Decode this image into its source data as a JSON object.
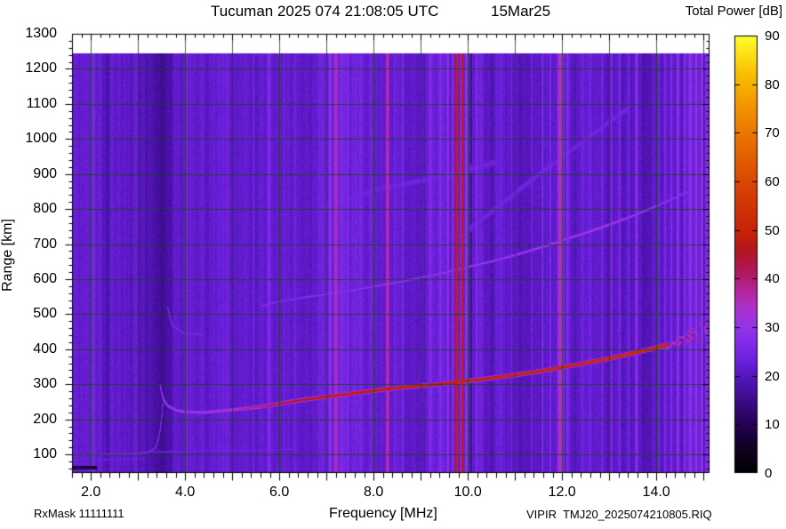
{
  "header": {
    "title": "Tucuman 2025 074 21:08:05 UTC",
    "date_label": "15Mar25"
  },
  "footer": {
    "left": "RxMask 11111111",
    "right": "VIPIR  TMJ20_2025074210805.RIQ"
  },
  "chart_data": {
    "type": "heatmap",
    "title": "Tucuman 2025 074 21:08:05 UTC",
    "date_label": "15Mar25",
    "xlabel": "Frequency [MHz]",
    "ylabel": "Range [km]",
    "colorbar_title": "Total Power [dB]",
    "x_range": [
      1.6,
      15.13
    ],
    "y_range": [
      47,
      1300
    ],
    "data_top_km": 1245,
    "colorbar_range": [
      0,
      90
    ],
    "x_tick_labels": [
      "2.0",
      "4.0",
      "6.0",
      "8.0",
      "10.0",
      "12.0",
      "14.0"
    ],
    "x_tick_values": [
      2,
      4,
      6,
      8,
      10,
      12,
      14
    ],
    "y_tick_labels": [
      "100",
      "200",
      "300",
      "400",
      "500",
      "600",
      "700",
      "800",
      "900",
      "1000",
      "1100",
      "1200",
      "1300"
    ],
    "y_tick_values": [
      100,
      200,
      300,
      400,
      500,
      600,
      700,
      800,
      900,
      1000,
      1100,
      1200,
      1300
    ],
    "colorbar_tick_labels": [
      "0",
      "10",
      "20",
      "30",
      "40",
      "50",
      "60",
      "70",
      "80",
      "90"
    ],
    "colorbar_tick_values": [
      0,
      10,
      20,
      30,
      40,
      50,
      60,
      70,
      80,
      90
    ],
    "grid_color": "#1446144",
    "background_db": 22,
    "colormap_stops": [
      [
        0,
        [
          0,
          0,
          0
        ]
      ],
      [
        6,
        [
          20,
          0,
          40
        ]
      ],
      [
        12,
        [
          45,
          5,
          105
        ]
      ],
      [
        18,
        [
          75,
          18,
          170
        ]
      ],
      [
        22,
        [
          100,
          28,
          210
        ]
      ],
      [
        26,
        [
          125,
          42,
          232
        ]
      ],
      [
        30,
        [
          148,
          52,
          232
        ]
      ],
      [
        34,
        [
          172,
          50,
          205
        ]
      ],
      [
        38,
        [
          180,
          36,
          150
        ]
      ],
      [
        42,
        [
          175,
          24,
          85
        ]
      ],
      [
        46,
        [
          180,
          22,
          30
        ]
      ],
      [
        50,
        [
          200,
          35,
          8
        ]
      ],
      [
        58,
        [
          214,
          64,
          4
        ]
      ],
      [
        66,
        [
          228,
          100,
          0
        ]
      ],
      [
        74,
        [
          240,
          140,
          0
        ]
      ],
      [
        82,
        [
          250,
          190,
          0
        ]
      ],
      [
        90,
        [
          255,
          255,
          45
        ]
      ]
    ],
    "stripes": [
      [
        2.05,
        0.1,
        2
      ],
      [
        2.32,
        0.22,
        -2.5
      ],
      [
        2.62,
        0.06,
        1.5
      ],
      [
        2.95,
        0.12,
        3
      ],
      [
        3.18,
        0.1,
        -2
      ],
      [
        3.42,
        0.3,
        -3.5
      ],
      [
        3.62,
        0.25,
        -3
      ],
      [
        4.05,
        0.06,
        2
      ],
      [
        4.5,
        0.22,
        -2
      ],
      [
        5.05,
        0.22,
        -1.5
      ],
      [
        5.45,
        0.05,
        2.5
      ],
      [
        5.62,
        0.05,
        2
      ],
      [
        5.78,
        0.09,
        4
      ],
      [
        6.1,
        0.05,
        2
      ],
      [
        6.55,
        0.45,
        -2
      ],
      [
        7.08,
        0.05,
        4
      ],
      [
        7.2,
        0.07,
        12
      ],
      [
        7.33,
        0.05,
        4
      ],
      [
        7.46,
        0.05,
        3
      ],
      [
        7.72,
        0.05,
        2.5
      ],
      [
        7.95,
        0.05,
        3
      ],
      [
        8.3,
        0.09,
        16
      ],
      [
        8.45,
        0.05,
        4
      ],
      [
        8.62,
        0.05,
        3.5
      ],
      [
        9.0,
        0.3,
        -2
      ],
      [
        9.2,
        0.05,
        3
      ],
      [
        9.42,
        0.05,
        4
      ],
      [
        9.58,
        0.06,
        6
      ],
      [
        9.68,
        0.05,
        5
      ],
      [
        9.76,
        0.055,
        26
      ],
      [
        9.88,
        0.06,
        24
      ],
      [
        9.97,
        0.05,
        8
      ],
      [
        10.07,
        0.06,
        -6
      ],
      [
        10.18,
        0.04,
        5
      ],
      [
        10.45,
        0.3,
        -2
      ],
      [
        10.7,
        0.05,
        3
      ],
      [
        10.92,
        0.05,
        4
      ],
      [
        11.15,
        0.2,
        -1.5
      ],
      [
        11.35,
        0.05,
        3
      ],
      [
        11.58,
        0.05,
        4
      ],
      [
        11.75,
        0.04,
        5
      ],
      [
        11.97,
        0.14,
        13
      ],
      [
        12.12,
        0.05,
        6
      ],
      [
        12.3,
        0.25,
        -2
      ],
      [
        12.6,
        0.05,
        3
      ],
      [
        12.85,
        0.05,
        4
      ],
      [
        13.05,
        0.06,
        5
      ],
      [
        13.22,
        0.05,
        4
      ],
      [
        13.42,
        0.05,
        4
      ],
      [
        13.58,
        0.08,
        6
      ],
      [
        13.8,
        0.22,
        -2
      ],
      [
        14.05,
        0.04,
        4
      ],
      [
        14.18,
        0.05,
        5
      ],
      [
        14.32,
        0.06,
        6
      ],
      [
        14.46,
        0.06,
        7
      ],
      [
        14.6,
        0.05,
        5
      ],
      [
        14.72,
        0.06,
        6
      ],
      [
        14.85,
        0.05,
        7
      ],
      [
        14.97,
        0.06,
        6
      ],
      [
        15.08,
        0.05,
        5
      ]
    ],
    "traces": {
      "e_layer": {
        "points": [
          [
            1.6,
            100
          ],
          [
            2.2,
            101
          ],
          [
            2.7,
            102
          ],
          [
            3.05,
            104
          ],
          [
            3.25,
            109
          ],
          [
            3.37,
            122
          ],
          [
            3.45,
            160
          ],
          [
            3.5,
            215
          ],
          [
            3.53,
            268
          ]
        ],
        "db": 27,
        "sigma": 1.6
      },
      "e_echo": {
        "points": [
          [
            1.6,
            86
          ],
          [
            2.4,
            87
          ],
          [
            3.1,
            88
          ]
        ],
        "db": 24.5,
        "sigma": 1.4
      },
      "es_tail": {
        "points": [
          [
            3.3,
            108
          ],
          [
            4.3,
            111
          ],
          [
            5.3,
            113
          ],
          [
            6.3,
            115
          ]
        ],
        "db": 24.3,
        "sigma": 1.6
      },
      "f_1hop": {
        "points": [
          [
            3.46,
            298
          ],
          [
            3.52,
            262
          ],
          [
            3.62,
            240
          ],
          [
            3.78,
            228
          ],
          [
            4.0,
            222
          ],
          [
            4.4,
            221
          ],
          [
            4.8,
            226
          ],
          [
            5.2,
            231
          ],
          [
            5.6,
            237
          ],
          [
            6.0,
            246
          ],
          [
            6.5,
            257
          ],
          [
            7.0,
            266
          ],
          [
            7.5,
            274
          ],
          [
            8.0,
            283
          ],
          [
            8.5,
            291
          ],
          [
            9.0,
            297
          ],
          [
            9.5,
            303
          ],
          [
            10.0,
            311
          ],
          [
            10.5,
            319
          ],
          [
            11.0,
            328
          ],
          [
            11.5,
            338
          ],
          [
            12.0,
            350
          ],
          [
            12.5,
            362
          ],
          [
            13.0,
            375
          ],
          [
            13.5,
            390
          ],
          [
            14.0,
            406
          ],
          [
            14.25,
            416
          ]
        ],
        "db_points": [
          [
            3.46,
            30
          ],
          [
            4.0,
            32
          ],
          [
            4.6,
            34
          ],
          [
            5.2,
            38
          ],
          [
            5.8,
            43
          ],
          [
            6.4,
            47
          ],
          [
            7.0,
            50
          ],
          [
            8.0,
            51
          ],
          [
            10.0,
            52
          ],
          [
            12.0,
            53
          ],
          [
            13.5,
            55
          ],
          [
            14.25,
            54
          ]
        ],
        "sigma": 2.2
      },
      "f_2hop_cusp": {
        "points": [
          [
            3.62,
            520
          ],
          [
            3.72,
            468
          ],
          [
            3.95,
            448
          ],
          [
            4.35,
            443
          ]
        ],
        "db": 25.5,
        "sigma": 2.2
      },
      "f_2hop": {
        "points": [
          [
            5.6,
            524
          ],
          [
            6.0,
            538
          ],
          [
            6.5,
            549
          ],
          [
            7.0,
            558
          ],
          [
            7.5,
            569
          ],
          [
            8.0,
            580
          ],
          [
            8.5,
            592
          ],
          [
            9.0,
            606
          ],
          [
            9.5,
            620
          ],
          [
            10.0,
            636
          ],
          [
            10.5,
            652
          ],
          [
            11.0,
            670
          ],
          [
            11.5,
            690
          ],
          [
            12.0,
            712
          ],
          [
            12.5,
            734
          ],
          [
            13.0,
            757
          ],
          [
            13.5,
            782
          ],
          [
            14.0,
            810
          ],
          [
            14.3,
            828
          ],
          [
            14.65,
            850
          ]
        ],
        "db_points": [
          [
            5.6,
            27
          ],
          [
            7.0,
            28
          ],
          [
            9.0,
            29
          ],
          [
            11.0,
            31
          ],
          [
            12.0,
            33
          ],
          [
            12.9,
            34
          ],
          [
            13.5,
            31
          ],
          [
            14.1,
            29
          ],
          [
            14.65,
            28
          ]
        ],
        "sigma": 1.9
      },
      "spread_band_a": {
        "points": [
          [
            6.8,
            800
          ],
          [
            8.0,
            855
          ],
          [
            9.3,
            890
          ],
          [
            10.6,
            935
          ]
        ],
        "db": 24.2,
        "sigma": 7
      },
      "spread_band_b": {
        "points": [
          [
            9.8,
            720
          ],
          [
            11.5,
            900
          ],
          [
            13.4,
            1090
          ]
        ],
        "db": 24.2,
        "sigma": 7
      },
      "tip_spread": {
        "f_start": 14.05,
        "f_end": 15.12,
        "km_base": 402,
        "km_slope": 55,
        "jitter": 42,
        "db_min": 34,
        "db_max": 43
      },
      "dark_patch": {
        "f": [
          1.6,
          2.12
        ],
        "km": [
          57,
          67
        ],
        "db": 8
      }
    }
  }
}
